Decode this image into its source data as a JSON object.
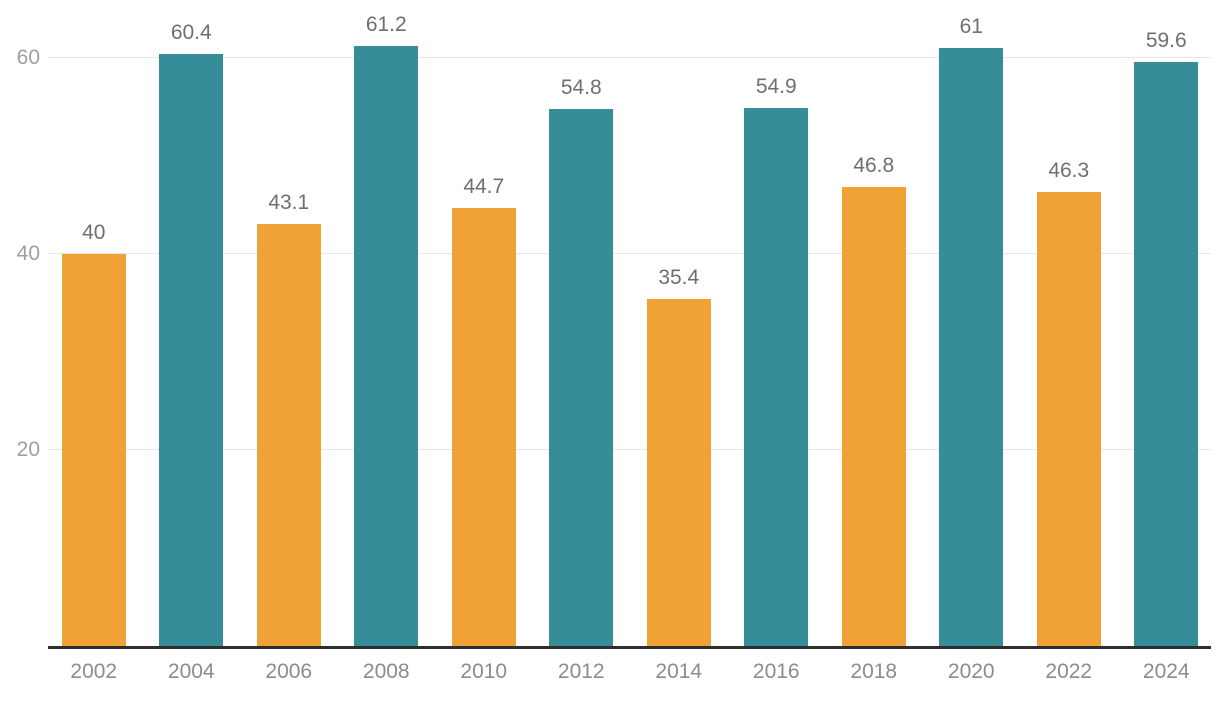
{
  "chart_data": {
    "type": "bar",
    "categories": [
      "2002",
      "2004",
      "2006",
      "2008",
      "2010",
      "2012",
      "2014",
      "2016",
      "2018",
      "2020",
      "2022",
      "2024"
    ],
    "values": [
      40,
      60.4,
      43.1,
      61.2,
      44.7,
      54.8,
      35.4,
      54.9,
      46.8,
      61,
      46.3,
      59.6
    ],
    "value_labels": [
      "40",
      "60.4",
      "43.1",
      "61.2",
      "44.7",
      "54.8",
      "35.4",
      "54.9",
      "46.8",
      "61",
      "46.3",
      "59.6"
    ],
    "title": "",
    "xlabel": "",
    "ylabel": "",
    "ylim": [
      0,
      65.9
    ],
    "yticks": [
      20,
      40,
      60
    ],
    "grid": true,
    "legend": "none",
    "bar_color_pattern": "alternate",
    "bar_colors": [
      "#F0A236",
      "#348D98"
    ]
  },
  "style": {
    "background": "#FFFFFF",
    "gridline_color": "#E6E6E6",
    "axis_line_color": "#2E2E2E",
    "value_label_color": "#6F6F6F",
    "x_tick_color": "#8C8C8C",
    "y_tick_color": "#9E9E9E"
  }
}
